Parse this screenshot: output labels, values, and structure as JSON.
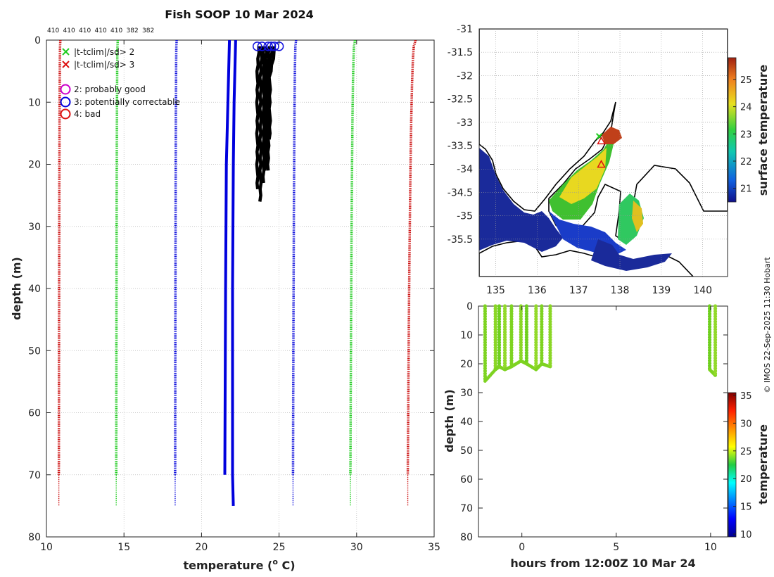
{
  "chart_data": [
    {
      "id": "profiles",
      "type": "line",
      "title": "Fish SOOP 10 Mar 2024",
      "xlabel_main": "temperature (",
      "xlabel_sup": "o",
      "xlabel_end": " C)",
      "ylabel": "depth (m)",
      "xlim": [
        10,
        35
      ],
      "ylim": [
        0,
        80
      ],
      "xticks": [
        "10",
        "15",
        "20",
        "25",
        "30",
        "35"
      ],
      "yticks": [
        "0",
        "10",
        "20",
        "30",
        "40",
        "50",
        "60",
        "70",
        "80"
      ],
      "counts": [
        "410",
        "410",
        "410",
        "410",
        "410",
        "382",
        "382"
      ],
      "legend": {
        "cross_green": "|t-tclim|/sd> 2",
        "cross_red": "|t-tclim|/sd> 3",
        "flag2": "2: probably good",
        "flag3": "3: potentially correctable",
        "flag4": "4: bad"
      },
      "climatology": [
        {
          "name": "lower 3sd",
          "color": "#cc1010",
          "surface": 10.9,
          "deep": 10.8
        },
        {
          "name": "lower 2sd",
          "color": "#22cc22",
          "surface": 14.6,
          "deep": 14.5
        },
        {
          "name": "lower 1sd",
          "color": "#1010dd",
          "surface": 18.4,
          "deep": 18.3
        },
        {
          "name": "upper 1sd",
          "color": "#1010dd",
          "surface": 26.1,
          "deep": 25.9
        },
        {
          "name": "upper 2sd",
          "color": "#22cc22",
          "surface": 29.9,
          "deep": 29.6
        },
        {
          "name": "upper 3sd",
          "color": "#cc1010",
          "surface": 33.8,
          "deep": 33.3
        }
      ],
      "mean_profiles": [
        {
          "color": "#0000dd",
          "points": [
            [
              21.8,
              0
            ],
            [
              21.7,
              10
            ],
            [
              21.6,
              20
            ],
            [
              21.55,
              40
            ],
            [
              21.5,
              70
            ]
          ]
        },
        {
          "color": "#0000dd",
          "points": [
            [
              22.2,
              0
            ],
            [
              22.1,
              10
            ],
            [
              22.05,
              20
            ],
            [
              22.0,
              40
            ],
            [
              22.0,
              70
            ],
            [
              22.05,
              75
            ]
          ]
        }
      ],
      "observed_profiles": [
        {
          "color": "#000000",
          "surface": 23.7,
          "bottom": 23.6,
          "max_depth": 24
        },
        {
          "color": "#000000",
          "surface": 23.9,
          "bottom": 23.8,
          "max_depth": 26
        },
        {
          "color": "#000000",
          "surface": 24.0,
          "bottom": 24.0,
          "max_depth": 23
        },
        {
          "color": "#000000",
          "surface": 24.2,
          "bottom": 24.1,
          "max_depth": 21
        },
        {
          "color": "#000000",
          "surface": 24.4,
          "bottom": 24.2,
          "max_depth": 20
        },
        {
          "color": "#000000",
          "surface": 24.6,
          "bottom": 24.3,
          "max_depth": 21
        },
        {
          "color": "#000000",
          "surface": 24.8,
          "bottom": 24.4,
          "max_depth": 16
        }
      ],
      "flag3_markers": [
        [
          23.6,
          1
        ],
        [
          23.9,
          1
        ],
        [
          24.3,
          1
        ],
        [
          24.5,
          1
        ],
        [
          24.7,
          1
        ],
        [
          25.0,
          1
        ]
      ]
    },
    {
      "id": "sst_map",
      "type": "heatmap",
      "xlim": [
        134.6,
        140.6
      ],
      "ylim": [
        -36.3,
        -31
      ],
      "xticks": [
        "135",
        "136",
        "137",
        "138",
        "139",
        "140"
      ],
      "yticks": [
        "-31",
        "-31.5",
        "-32",
        "-32.5",
        "-33",
        "-33.5",
        "-34",
        "-34.5",
        "-35",
        "-35.5"
      ],
      "colorbar_label": "surface temperature",
      "colorbar_range": [
        20.5,
        25.8
      ],
      "colorbar_ticks": [
        "21",
        "22",
        "23",
        "24",
        "25"
      ],
      "markers": [
        {
          "lon": 137.5,
          "lat": -33.3,
          "kind": "cross_green"
        },
        {
          "lon": 137.55,
          "lat": -33.4,
          "kind": "triangle"
        },
        {
          "lon": 137.55,
          "lat": -33.9,
          "kind": "triangle"
        }
      ]
    },
    {
      "id": "depth_time",
      "type": "scatter",
      "xlabel": "hours from 12:00Z 10 Mar 24",
      "ylabel": "depth (m)",
      "xlim": [
        -2.3,
        10.9
      ],
      "ylim": [
        0,
        80
      ],
      "xticks": [
        "0",
        "5",
        "10"
      ],
      "yticks": [
        "0",
        "10",
        "20",
        "30",
        "40",
        "50",
        "60",
        "70",
        "80"
      ],
      "colorbar_label": "temperature",
      "colorbar_range": [
        9.5,
        35.5
      ],
      "colorbar_ticks": [
        "10",
        "15",
        "20",
        "25",
        "30",
        "35"
      ],
      "casts": [
        {
          "t": -1.95,
          "max_depth": 26
        },
        {
          "t": -1.4,
          "max_depth": 22
        },
        {
          "t": -1.2,
          "max_depth": 21
        },
        {
          "t": -0.9,
          "max_depth": 22
        },
        {
          "t": -0.55,
          "max_depth": 21
        },
        {
          "t": -0.05,
          "max_depth": 19
        },
        {
          "t": 0.25,
          "max_depth": 20
        },
        {
          "t": 0.75,
          "max_depth": 22
        },
        {
          "t": 1.05,
          "max_depth": 20
        },
        {
          "t": 1.5,
          "max_depth": 21
        },
        {
          "t": 9.95,
          "max_depth": 22
        },
        {
          "t": 10.25,
          "max_depth": 24
        }
      ]
    }
  ],
  "credit": "© IMOS 22-Sep-2025 11:30 Hobart"
}
